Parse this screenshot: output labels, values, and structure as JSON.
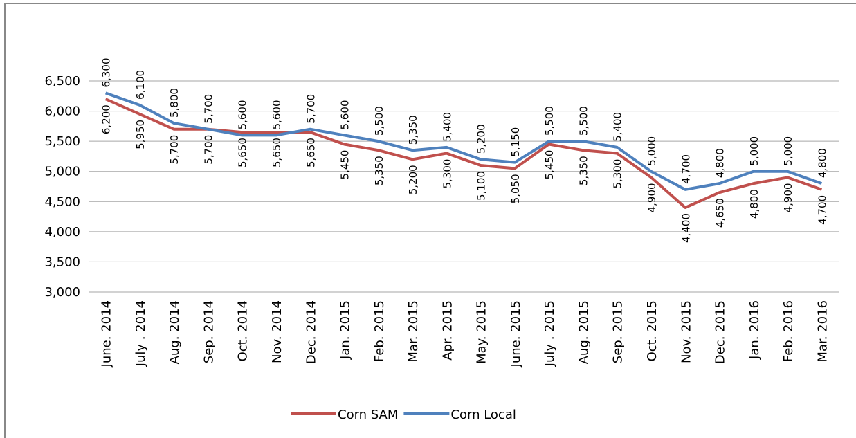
{
  "chart_data": {
    "type": "line",
    "categories": [
      "June. 2014",
      "July . 2014",
      "Aug. 2014",
      "Sep. 2014",
      "Oct. 2014",
      "Nov. 2014",
      "Dec. 2014",
      "Jan. 2015",
      "Feb. 2015",
      "Mar. 2015",
      "Apr. 2015",
      "May. 2015",
      "June. 2015",
      "July . 2015",
      "Aug. 2015",
      "Sep. 2015",
      "Oct. 2015",
      "Nov. 2015",
      "Dec. 2015",
      "Jan. 2016",
      "Feb. 2016",
      "Mar. 2016"
    ],
    "series": [
      {
        "name": "Corn SAM",
        "color": "#c0504d",
        "values": [
          6200,
          5950,
          5700,
          5700,
          5650,
          5650,
          5650,
          5450,
          5350,
          5200,
          5300,
          5100,
          5050,
          5450,
          5350,
          5300,
          4900,
          4400,
          4650,
          4800,
          4900,
          4700
        ],
        "value_labels": [
          "6,200",
          "5,950",
          "5,700",
          "5,700",
          "5,650",
          "5,650",
          "5,650",
          "5,450",
          "5,350",
          "5,200",
          "5,300",
          "5,100",
          "5,050",
          "5,450",
          "5,350",
          "5,300",
          "4,900",
          "4,400",
          "4,650",
          "4,800",
          "4,900",
          "4,700"
        ]
      },
      {
        "name": "Corn Local",
        "color": "#4f81bd",
        "values": [
          6300,
          6100,
          5800,
          5700,
          5600,
          5600,
          5700,
          5600,
          5500,
          5350,
          5400,
          5200,
          5150,
          5500,
          5500,
          5400,
          5000,
          4700,
          4800,
          5000,
          5000,
          4800
        ],
        "value_labels": [
          "6,300",
          "6,100",
          "5,800",
          "5,700",
          "5,600",
          "5,600",
          "5,700",
          "5,600",
          "5,500",
          "5,350",
          "5,400",
          "5,200",
          "5,150",
          "5,500",
          "5,500",
          "5,400",
          "5,000",
          "4,700",
          "4,800",
          "5,000",
          "5,000",
          "4,800"
        ]
      }
    ],
    "ylim": [
      3000,
      6500
    ],
    "yticks": [
      {
        "value": 3000,
        "label": "3,000"
      },
      {
        "value": 3500,
        "label": "3,500"
      },
      {
        "value": 4000,
        "label": "4,000"
      },
      {
        "value": 4500,
        "label": "4,500"
      },
      {
        "value": 5000,
        "label": "5,000"
      },
      {
        "value": 5500,
        "label": "5,500"
      },
      {
        "value": 6000,
        "label": "6,000"
      },
      {
        "value": 6500,
        "label": "6,500"
      }
    ],
    "grid": true,
    "legend": "bottom"
  }
}
